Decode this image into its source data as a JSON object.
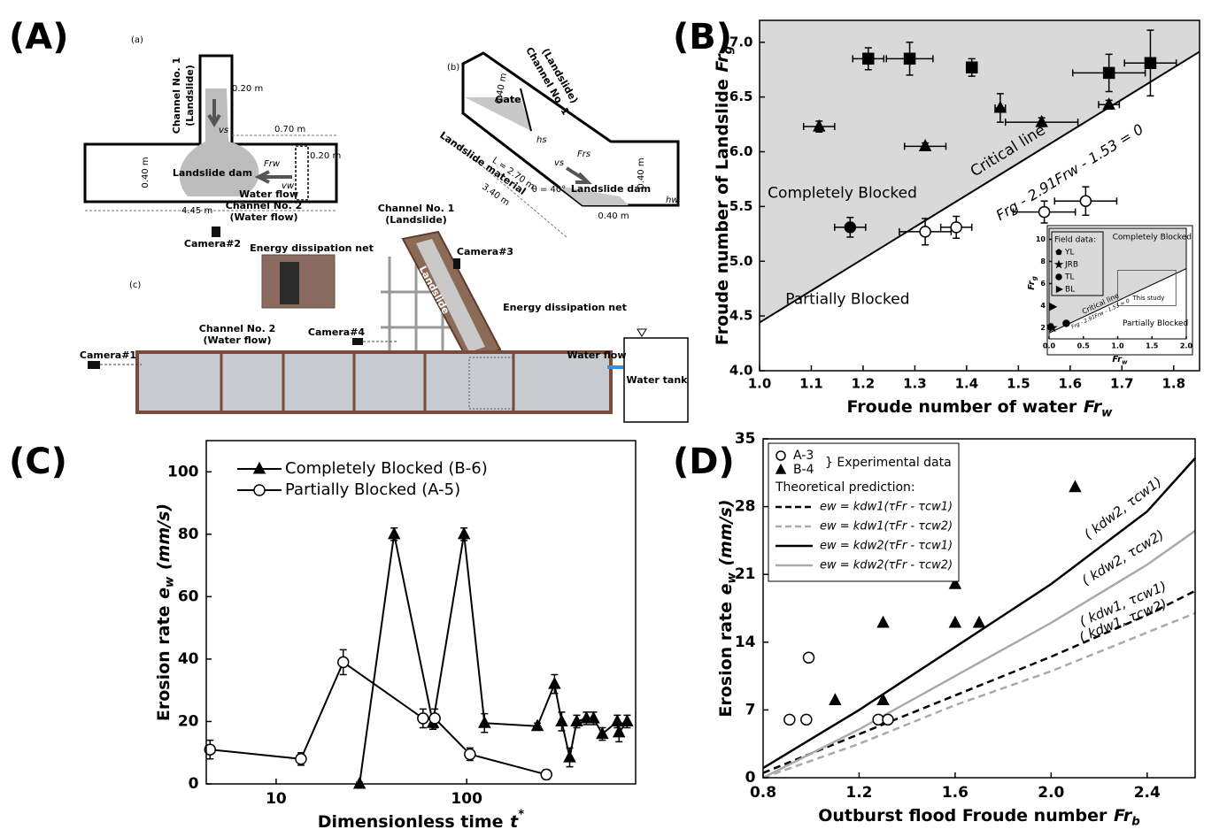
{
  "panel_labels": [
    "(A)",
    "(B)",
    "(C)",
    "(D)"
  ],
  "diagram": {
    "a": {
      "label": "(a)",
      "channel1": "Channel No. 1",
      "channel1_sub": "(Landslide)",
      "w_top": "0.20 m",
      "vs": "vs",
      "len": "0.70 m",
      "net_w": "0.20 m",
      "width": "0.40 m",
      "dam": "Landslide dam",
      "frw": "Frw",
      "vw": "vw",
      "flow": "Water flow",
      "length": "4.45 m",
      "channel2": "Channel No. 2",
      "channel2_sub": "(Water flow)",
      "camera2": "Camera#2",
      "net": "Energy dissipation net"
    },
    "b": {
      "label": "(b)",
      "channel1": "Channel No. 1",
      "channel1_sub": "(Landslide)",
      "w1": "0.40 m",
      "gate": "Gate",
      "hs": "hs",
      "frs": "Frs",
      "vs": "vs",
      "L": "L = 2.70 m",
      "material": "Landslide material",
      "len": "3.40 m",
      "theta": "θ = 40°",
      "dam": "Landslide dam",
      "w2": "0.40 m",
      "w3": "0.40 m",
      "hw": "hw"
    },
    "c": {
      "label": "(c)",
      "channel1": "Channel No. 1",
      "channel1_sub": "(Landslide)",
      "camera3": "Camera#3",
      "landslide": "Landslide",
      "net": "Energy dissipation net",
      "channel2": "Channel No. 2",
      "channel2_sub": "(Water flow)",
      "camera4": "Camera#4",
      "camera1": "Camera#1",
      "flow": "Water flow",
      "tank": "Water tank"
    }
  },
  "chart_data": [
    {
      "type": "scatter",
      "xlim": [
        1.0,
        1.85
      ],
      "ylim": [
        4.0,
        7.2
      ],
      "xticks": [
        {
          "value": 1,
          "label": "1.0"
        },
        1.1,
        1.2,
        1.3,
        1.4,
        1.5,
        1.6,
        1.7,
        1.8
      ],
      "yticks": [
        {
          "value": 4,
          "label": "4.0"
        },
        4.5,
        {
          "value": 5,
          "label": "5.0"
        },
        5.5,
        {
          "value": 6,
          "label": "6.0"
        },
        6.5,
        {
          "value": 7,
          "label": "7.0"
        }
      ],
      "xlabel": {
        "text": "Froude number of water",
        "var": "Fr",
        "sub": "w"
      },
      "ylabel": {
        "text": "Froude number of Landslide",
        "var": "Fr",
        "sub": "g"
      },
      "shade": "#d9d9d9",
      "line": {
        "slope": 2.91,
        "intercept": 1.53,
        "label": "Critical line",
        "equation": "Frg - 2.91Frw - 1.53 = 0",
        "color": "#000000"
      },
      "regions": [
        "Completely Blocked",
        "Partially Blocked"
      ],
      "series": [
        {
          "marker": "square",
          "fill": "#000000",
          "x": [
            1.21,
            1.29,
            1.41,
            1.675,
            1.755
          ],
          "values": [
            6.85,
            6.85,
            6.77,
            6.72,
            6.81
          ],
          "xerr": [
            0.03,
            0.045,
            0.01,
            0.07,
            0.05
          ],
          "yerr": [
            0.1,
            0.15,
            0.08,
            0.17,
            0.3
          ]
        },
        {
          "marker": "triangle",
          "fill": "#000000",
          "x": [
            1.115,
            1.32,
            1.465,
            1.545,
            1.675
          ],
          "values": [
            6.23,
            6.05,
            6.4,
            6.27,
            6.43
          ],
          "xerr": [
            0.03,
            0.04,
            0.01,
            0.07,
            0.02
          ],
          "yerr": [
            0.05,
            0.03,
            0.13,
            0.04,
            0.04
          ]
        },
        {
          "marker": "circle",
          "fill": "#000000",
          "x": [
            1.175
          ],
          "values": [
            5.31
          ],
          "xerr": [
            0.03
          ],
          "yerr": [
            0.09
          ]
        },
        {
          "marker": "circle",
          "fill": "#ffffff",
          "x": [
            1.32,
            1.38,
            1.55,
            1.63
          ],
          "values": [
            5.27,
            5.31,
            5.45,
            5.55
          ],
          "xerr": [
            0.05,
            0.03,
            0.06,
            0.06
          ],
          "yerr": [
            0.12,
            0.1,
            0.1,
            0.13
          ]
        }
      ],
      "inset": {
        "xlim": [
          0,
          2
        ],
        "ylim": [
          1,
          11
        ],
        "xticks": [
          {
            "value": 0,
            "label": "0.0"
          },
          0.5,
          {
            "value": 1,
            "label": "1.0"
          },
          1.5,
          {
            "value": 2,
            "label": "2.0"
          }
        ],
        "yticks": [
          2,
          4,
          6,
          8,
          10
        ],
        "xlabel": {
          "var": "Fr",
          "sub": "w"
        },
        "ylabel": {
          "var": "Fr",
          "sub": "g"
        },
        "legend_title": "Field data:",
        "series": [
          {
            "name": "YL",
            "marker": "pentagon",
            "fill": "#000000",
            "x": [
              0.02
            ],
            "values": [
              2.1
            ]
          },
          {
            "name": "JRB",
            "marker": "star",
            "fill": "#000000",
            "x": [
              0.05
            ],
            "values": [
              2.0
            ]
          },
          {
            "name": "TL",
            "marker": "circle",
            "fill": "#000000",
            "x": [
              0.25
            ],
            "values": [
              2.4
            ]
          },
          {
            "name": "BL",
            "marker": "triangle-right",
            "fill": "#000000",
            "x": [
              0.05
            ],
            "values": [
              3.9
            ]
          }
        ],
        "regions": [
          "Completely Blocked",
          "Partially Blocked"
        ],
        "line_label": "Critical line",
        "equation": "Frg - 2.91Frw - 1.53 = 0",
        "note": "This study"
      }
    },
    {
      "type": "line",
      "xlog": true,
      "xlim": [
        4.3,
        770
      ],
      "ylim": [
        0,
        110
      ],
      "xticks": [
        10,
        100
      ],
      "yticks": [
        0,
        20,
        40,
        60,
        80,
        100
      ],
      "xlabel": {
        "text": "Dimensionless time",
        "var": "t",
        "sup": "*"
      },
      "ylabel": {
        "text": "Erosion rate",
        "var": "e",
        "sub": "w",
        "unit": "(mm/s)"
      },
      "series": [
        {
          "name": "Completely Blocked (B-6)",
          "marker": "triangle",
          "fill": "#000000",
          "color": "#000000",
          "x": [
            27.4,
            41.6,
            66.5,
            96.8,
            124,
            235,
            289,
            315,
            347,
            378,
            425,
            463,
            515,
            617,
            630,
            695
          ],
          "values": [
            0,
            80,
            19.5,
            80,
            19.5,
            18.5,
            32,
            20,
            8.5,
            20,
            21,
            21,
            16,
            20,
            16.5,
            20
          ],
          "yerr": [
            0.5,
            2,
            2,
            2,
            3,
            1,
            3,
            3,
            3,
            2,
            2,
            2,
            2,
            2,
            3,
            2
          ]
        },
        {
          "name": "Partially Blocked (A-5)",
          "marker": "circle",
          "fill": "#ffffff",
          "color": "#000000",
          "x": [
            4.5,
            13.5,
            22.5,
            59,
            68,
            104,
            262
          ],
          "values": [
            11,
            8,
            39,
            21,
            21,
            9.5,
            3
          ],
          "yerr": [
            3,
            2,
            4,
            3,
            3,
            2,
            1.5
          ]
        }
      ]
    },
    {
      "type": "scatter",
      "xlim": [
        0.8,
        2.6
      ],
      "ylim": [
        0,
        35
      ],
      "xticks": [
        0.8,
        1.2,
        1.6,
        {
          "value": 2,
          "label": "2.0"
        },
        2.4
      ],
      "yticks": [
        0,
        7,
        14,
        21,
        28,
        35
      ],
      "xlabel": {
        "text": "Outburst flood Froude number",
        "var": "Fr",
        "sub": "b"
      },
      "ylabel": {
        "text": "Erosion rate",
        "var": "e",
        "sub": "w",
        "unit": "(mm/s)"
      },
      "legend_group": "} Experimental data",
      "legend_heading": "Theoretical prediction:",
      "series": [
        {
          "name": "A-3",
          "mode": "markers",
          "marker": "circle",
          "fill": "#ffffff",
          "color": "#000000",
          "x": [
            0.91,
            0.98,
            0.99,
            1.28,
            1.32
          ],
          "values": [
            6,
            6,
            12.4,
            6,
            6
          ]
        },
        {
          "name": "B-4",
          "mode": "markers",
          "marker": "triangle",
          "fill": "#000000",
          "color": "#000000",
          "x": [
            1.1,
            1.3,
            1.3,
            1.6,
            1.6,
            1.7,
            2.1
          ],
          "values": [
            8,
            8,
            16,
            20,
            16,
            16,
            30
          ]
        },
        {
          "name": "ew = kdw1(τFr - τcw1)",
          "mode": "lines",
          "color": "#000000",
          "dash": true,
          "curve_label": "( kdw1, τcw1)",
          "x": [
            0.8,
            1.2,
            1.6,
            2.0,
            2.4,
            2.6
          ],
          "values": [
            0.5,
            4.5,
            8.5,
            12.5,
            16.8,
            19.3
          ]
        },
        {
          "name": "ew = kdw1(τFr - τcw2)",
          "mode": "lines",
          "color": "#aaaaaa",
          "dash": true,
          "curve_label": "( kdw1, τcw2)",
          "x": [
            0.8,
            1.2,
            1.6,
            2.0,
            2.4,
            2.6
          ],
          "values": [
            0,
            3.5,
            7.5,
            11,
            15,
            17
          ]
        },
        {
          "name": "ew = kdw2(τFr - τcw1)",
          "mode": "lines",
          "color": "#000000",
          "dash": false,
          "curve_label": "( kdw2, τcw1)",
          "x": [
            0.8,
            1.2,
            1.6,
            2.0,
            2.4,
            2.6
          ],
          "values": [
            1,
            7,
            13.5,
            20,
            27.5,
            33
          ]
        },
        {
          "name": "ew = kdw2(τFr - τcw2)",
          "mode": "lines",
          "color": "#aaaaaa",
          "dash": false,
          "curve_label": "( kdw2, τcw2)",
          "x": [
            0.8,
            1.2,
            1.6,
            2.0,
            2.4,
            2.6
          ],
          "values": [
            0,
            5,
            10.5,
            16,
            22,
            25.5
          ]
        }
      ]
    }
  ]
}
